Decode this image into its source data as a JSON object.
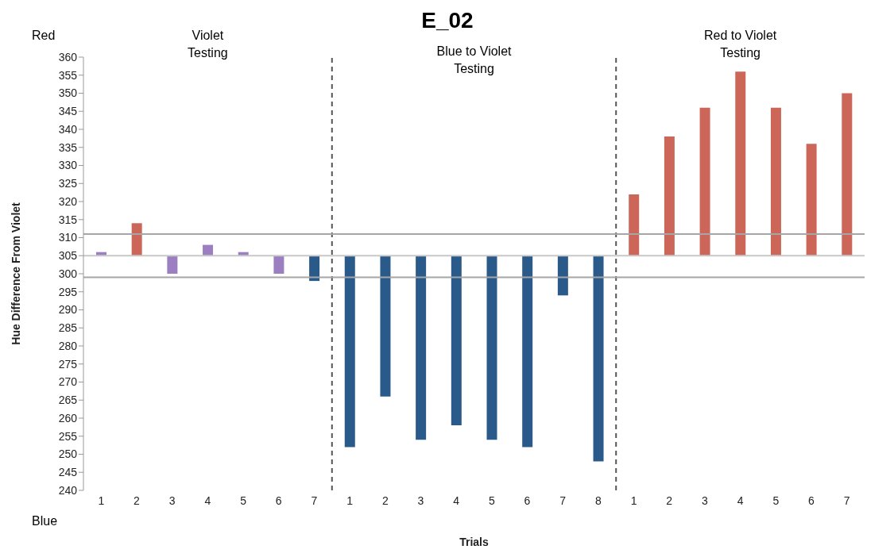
{
  "chart_data": {
    "type": "bar",
    "title": "E_02",
    "xlabel": "Trials",
    "ylabel": "Hue Difference From Violet",
    "categories": [
      "1",
      "2",
      "3",
      "4",
      "5",
      "6",
      "7",
      "1",
      "2",
      "3",
      "4",
      "5",
      "6",
      "7",
      "8",
      "1",
      "2",
      "3",
      "4",
      "5",
      "6",
      "7"
    ],
    "values": [
      1,
      9,
      -5,
      3,
      1,
      -5,
      -7,
      -53,
      -39,
      -51,
      -47,
      -51,
      -53,
      -11,
      -57,
      17,
      33,
      41,
      51,
      41,
      31,
      45
    ],
    "base": [
      305,
      305,
      305,
      305,
      305,
      305,
      305,
      305,
      305,
      305,
      305,
      305,
      305,
      305,
      305,
      305,
      305,
      305,
      305,
      305,
      305,
      305
    ],
    "colors": [
      "#9b7fc0",
      "#cc6659",
      "#9b7fc0",
      "#9b7fc0",
      "#9b7fc0",
      "#9b7fc0",
      "#2a5a8a",
      "#2a5a8a",
      "#2a5a8a",
      "#2a5a8a",
      "#2a5a8a",
      "#2a5a8a",
      "#2a5a8a",
      "#2a5a8a",
      "#2a5a8a",
      "#cc6659",
      "#cc6659",
      "#cc6659",
      "#cc6659",
      "#cc6659",
      "#cc6659",
      "#cc6659"
    ],
    "ylim": [
      240,
      360
    ],
    "yticks": [
      240,
      245,
      250,
      255,
      260,
      265,
      270,
      275,
      280,
      285,
      290,
      295,
      300,
      305,
      310,
      315,
      320,
      325,
      330,
      335,
      340,
      345,
      350,
      355,
      360
    ],
    "ref_lines": [
      {
        "axis": "y",
        "value": 311,
        "color": "#a6a6a6"
      },
      {
        "axis": "y",
        "value": 299,
        "color": "#a6a6a6"
      },
      {
        "axis": "y",
        "value": 305,
        "color": "#c8c8c8"
      }
    ],
    "annotations": [
      "Violet\nTesting",
      "Blue to Violet\nTesting",
      "Red to Violet\nTesting",
      "Red",
      "Blue"
    ]
  }
}
